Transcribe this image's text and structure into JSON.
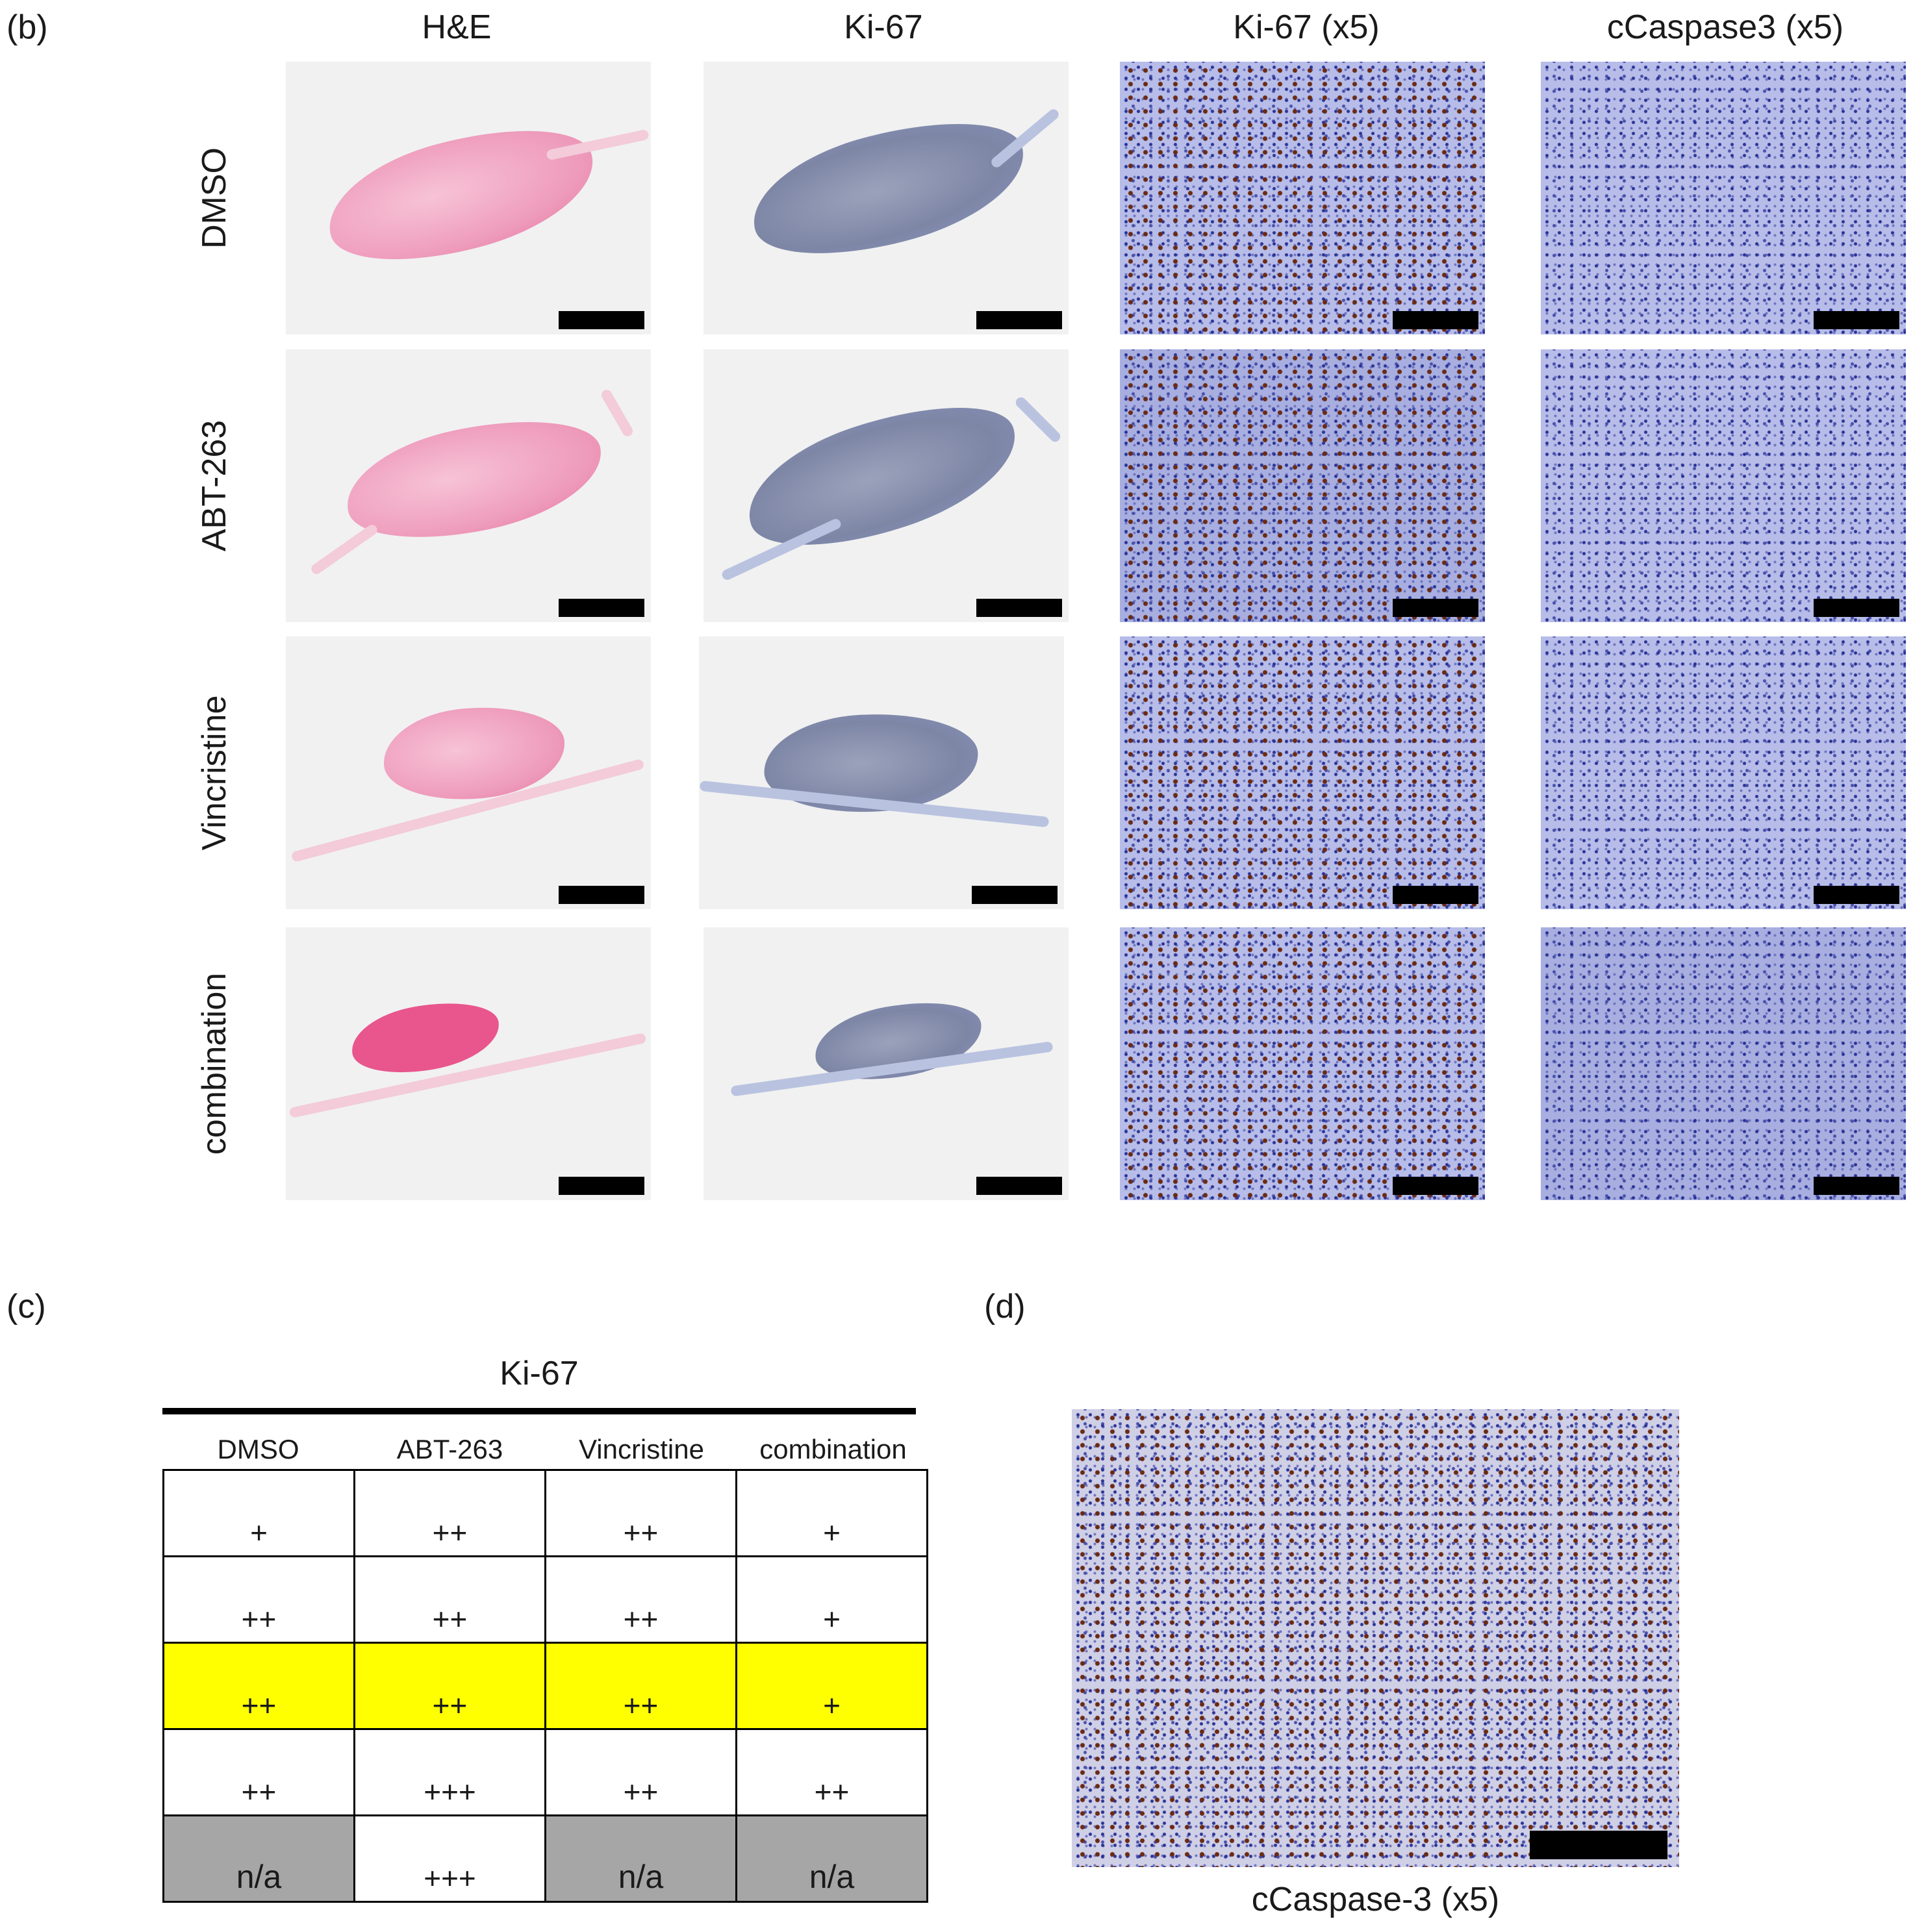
{
  "panel_labels": {
    "b": "(b)",
    "c": "(c)",
    "d": "(d)"
  },
  "panel_b": {
    "columns": [
      "H&E",
      "Ki-67",
      "Ki-67 (x5)",
      "cCaspase3 (x5)"
    ],
    "rows": [
      "DMSO",
      "ABT-263",
      "Vincristine",
      "combination"
    ]
  },
  "panel_c": {
    "title": "Ki-67",
    "headers": [
      "DMSO",
      "ABT-263",
      "Vincristine",
      "combination"
    ],
    "rows": [
      [
        "+",
        "++",
        "++",
        "+"
      ],
      [
        "++",
        "++",
        "++",
        "+"
      ],
      [
        "++",
        "++",
        "++",
        "+"
      ],
      [
        "++",
        "+++",
        "++",
        "++"
      ],
      [
        "n/a",
        "+++",
        "n/a",
        "n/a"
      ]
    ],
    "highlight_row_color": "#ffff00",
    "na_cell_color": "#a6a6a6"
  },
  "panel_d": {
    "caption": "cCaspase-3 (x5)"
  }
}
